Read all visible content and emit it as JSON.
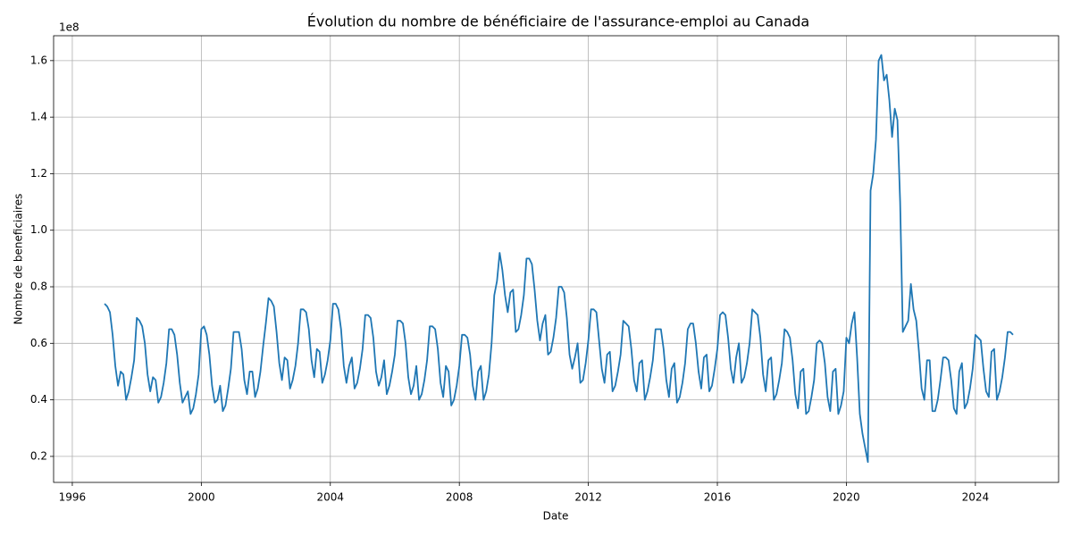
{
  "chart_data": {
    "type": "line",
    "title": "Évolution du nombre de bénéficiaire de l'assurance-emploi au Canada",
    "x_label": "Date",
    "y_label": "Nombre de beneficiaires",
    "y_offset_text": "1e8",
    "grid": true,
    "xlim": [
      1995.42,
      2026.58
    ],
    "ylim": [
      0.108,
      1.688
    ],
    "xticks": [
      1996,
      2000,
      2004,
      2008,
      2012,
      2016,
      2020,
      2024
    ],
    "yticks": [
      0.2,
      0.4,
      0.6,
      0.8,
      {
        "value": 1,
        "label": "1.0"
      },
      1.2,
      1.4,
      1.6
    ],
    "x": [
      1997,
      1997.083,
      1997.167,
      1997.25,
      1997.333,
      1997.417,
      1997.5,
      1997.583,
      1997.667,
      1997.75,
      1997.833,
      1997.917,
      1998,
      1998.083,
      1998.167,
      1998.25,
      1998.333,
      1998.417,
      1998.5,
      1998.583,
      1998.667,
      1998.75,
      1998.833,
      1998.917,
      1999,
      1999.083,
      1999.167,
      1999.25,
      1999.333,
      1999.417,
      1999.5,
      1999.583,
      1999.667,
      1999.75,
      1999.833,
      1999.917,
      2000,
      2000.083,
      2000.167,
      2000.25,
      2000.333,
      2000.417,
      2000.5,
      2000.583,
      2000.667,
      2000.75,
      2000.833,
      2000.917,
      2001,
      2001.083,
      2001.167,
      2001.25,
      2001.333,
      2001.417,
      2001.5,
      2001.583,
      2001.667,
      2001.75,
      2001.833,
      2001.917,
      2002,
      2002.083,
      2002.167,
      2002.25,
      2002.333,
      2002.417,
      2002.5,
      2002.583,
      2002.667,
      2002.75,
      2002.833,
      2002.917,
      2003,
      2003.083,
      2003.167,
      2003.25,
      2003.333,
      2003.417,
      2003.5,
      2003.583,
      2003.667,
      2003.75,
      2003.833,
      2003.917,
      2004,
      2004.083,
      2004.167,
      2004.25,
      2004.333,
      2004.417,
      2004.5,
      2004.583,
      2004.667,
      2004.75,
      2004.833,
      2004.917,
      2005,
      2005.083,
      2005.167,
      2005.25,
      2005.333,
      2005.417,
      2005.5,
      2005.583,
      2005.667,
      2005.75,
      2005.833,
      2005.917,
      2006,
      2006.083,
      2006.167,
      2006.25,
      2006.333,
      2006.417,
      2006.5,
      2006.583,
      2006.667,
      2006.75,
      2006.833,
      2006.917,
      2007,
      2007.083,
      2007.167,
      2007.25,
      2007.333,
      2007.417,
      2007.5,
      2007.583,
      2007.667,
      2007.75,
      2007.833,
      2007.917,
      2008,
      2008.083,
      2008.167,
      2008.25,
      2008.333,
      2008.417,
      2008.5,
      2008.583,
      2008.667,
      2008.75,
      2008.833,
      2008.917,
      2009,
      2009.083,
      2009.167,
      2009.25,
      2009.333,
      2009.417,
      2009.5,
      2009.583,
      2009.667,
      2009.75,
      2009.833,
      2009.917,
      2010,
      2010.083,
      2010.167,
      2010.25,
      2010.333,
      2010.417,
      2010.5,
      2010.583,
      2010.667,
      2010.75,
      2010.833,
      2010.917,
      2011,
      2011.083,
      2011.167,
      2011.25,
      2011.333,
      2011.417,
      2011.5,
      2011.583,
      2011.667,
      2011.75,
      2011.833,
      2011.917,
      2012,
      2012.083,
      2012.167,
      2012.25,
      2012.333,
      2012.417,
      2012.5,
      2012.583,
      2012.667,
      2012.75,
      2012.833,
      2012.917,
      2013,
      2013.083,
      2013.167,
      2013.25,
      2013.333,
      2013.417,
      2013.5,
      2013.583,
      2013.667,
      2013.75,
      2013.833,
      2013.917,
      2014,
      2014.083,
      2014.167,
      2014.25,
      2014.333,
      2014.417,
      2014.5,
      2014.583,
      2014.667,
      2014.75,
      2014.833,
      2014.917,
      2015,
      2015.083,
      2015.167,
      2015.25,
      2015.333,
      2015.417,
      2015.5,
      2015.583,
      2015.667,
      2015.75,
      2015.833,
      2015.917,
      2016,
      2016.083,
      2016.167,
      2016.25,
      2016.333,
      2016.417,
      2016.5,
      2016.583,
      2016.667,
      2016.75,
      2016.833,
      2016.917,
      2017,
      2017.083,
      2017.167,
      2017.25,
      2017.333,
      2017.417,
      2017.5,
      2017.583,
      2017.667,
      2017.75,
      2017.833,
      2017.917,
      2018,
      2018.083,
      2018.167,
      2018.25,
      2018.333,
      2018.417,
      2018.5,
      2018.583,
      2018.667,
      2018.75,
      2018.833,
      2018.917,
      2019,
      2019.083,
      2019.167,
      2019.25,
      2019.333,
      2019.417,
      2019.5,
      2019.583,
      2019.667,
      2019.75,
      2019.833,
      2019.917,
      2020,
      2020.083,
      2020.167,
      2020.25,
      2020.333,
      2020.417,
      2020.5,
      2020.583,
      2020.667,
      2020.75,
      2020.833,
      2020.917,
      2021,
      2021.083,
      2021.167,
      2021.25,
      2021.333,
      2021.417,
      2021.5,
      2021.583,
      2021.667,
      2021.75,
      2021.833,
      2021.917,
      2022,
      2022.083,
      2022.167,
      2022.25,
      2022.333,
      2022.417,
      2022.5,
      2022.583,
      2022.667,
      2022.75,
      2022.833,
      2022.917,
      2023,
      2023.083,
      2023.167,
      2023.25,
      2023.333,
      2023.417,
      2023.5,
      2023.583,
      2023.667,
      2023.75,
      2023.833,
      2023.917,
      2024,
      2024.083,
      2024.167,
      2024.25,
      2024.333,
      2024.417,
      2024.5,
      2024.583,
      2024.667,
      2024.75,
      2024.833,
      2024.917,
      2025,
      2025.083,
      2025.167
    ],
    "series": [
      {
        "color": "#1f77b4",
        "values": [
          0.74,
          0.73,
          0.71,
          0.63,
          0.52,
          0.45,
          0.5,
          0.49,
          0.4,
          0.43,
          0.48,
          0.54,
          0.69,
          0.68,
          0.66,
          0.6,
          0.49,
          0.43,
          0.48,
          0.47,
          0.39,
          0.41,
          0.46,
          0.53,
          0.65,
          0.65,
          0.63,
          0.56,
          0.46,
          0.39,
          0.41,
          0.43,
          0.35,
          0.37,
          0.42,
          0.49,
          0.65,
          0.66,
          0.63,
          0.56,
          0.45,
          0.39,
          0.4,
          0.45,
          0.36,
          0.38,
          0.44,
          0.51,
          0.64,
          0.64,
          0.64,
          0.58,
          0.47,
          0.42,
          0.5,
          0.5,
          0.41,
          0.44,
          0.5,
          0.59,
          0.67,
          0.76,
          0.75,
          0.73,
          0.64,
          0.53,
          0.47,
          0.55,
          0.54,
          0.44,
          0.47,
          0.52,
          0.6,
          0.72,
          0.72,
          0.71,
          0.65,
          0.54,
          0.48,
          0.58,
          0.57,
          0.46,
          0.49,
          0.54,
          0.61,
          0.74,
          0.74,
          0.72,
          0.65,
          0.52,
          0.46,
          0.52,
          0.55,
          0.44,
          0.46,
          0.51,
          0.58,
          0.7,
          0.7,
          0.69,
          0.62,
          0.5,
          0.45,
          0.48,
          0.54,
          0.42,
          0.45,
          0.5,
          0.56,
          0.68,
          0.68,
          0.67,
          0.6,
          0.48,
          0.42,
          0.45,
          0.52,
          0.4,
          0.42,
          0.47,
          0.54,
          0.66,
          0.66,
          0.65,
          0.58,
          0.46,
          0.41,
          0.52,
          0.5,
          0.38,
          0.4,
          0.45,
          0.52,
          0.63,
          0.63,
          0.62,
          0.56,
          0.45,
          0.4,
          0.5,
          0.52,
          0.4,
          0.43,
          0.49,
          0.6,
          0.77,
          0.82,
          0.92,
          0.86,
          0.77,
          0.71,
          0.78,
          0.79,
          0.64,
          0.65,
          0.7,
          0.77,
          0.9,
          0.9,
          0.88,
          0.79,
          0.68,
          0.61,
          0.67,
          0.7,
          0.56,
          0.57,
          0.62,
          0.69,
          0.8,
          0.8,
          0.78,
          0.69,
          0.56,
          0.51,
          0.55,
          0.6,
          0.46,
          0.47,
          0.53,
          0.61,
          0.72,
          0.72,
          0.71,
          0.61,
          0.51,
          0.46,
          0.56,
          0.57,
          0.43,
          0.45,
          0.5,
          0.56,
          0.68,
          0.67,
          0.66,
          0.58,
          0.47,
          0.43,
          0.53,
          0.54,
          0.4,
          0.43,
          0.48,
          0.54,
          0.65,
          0.65,
          0.65,
          0.58,
          0.47,
          0.41,
          0.51,
          0.53,
          0.39,
          0.41,
          0.46,
          0.53,
          0.65,
          0.67,
          0.67,
          0.6,
          0.5,
          0.44,
          0.55,
          0.56,
          0.43,
          0.45,
          0.51,
          0.58,
          0.7,
          0.71,
          0.7,
          0.62,
          0.51,
          0.46,
          0.55,
          0.6,
          0.46,
          0.48,
          0.53,
          0.6,
          0.72,
          0.71,
          0.7,
          0.62,
          0.49,
          0.43,
          0.54,
          0.55,
          0.4,
          0.42,
          0.47,
          0.53,
          0.65,
          0.64,
          0.62,
          0.54,
          0.42,
          0.37,
          0.5,
          0.51,
          0.35,
          0.36,
          0.41,
          0.47,
          0.6,
          0.61,
          0.6,
          0.53,
          0.41,
          0.36,
          0.5,
          0.51,
          0.35,
          0.38,
          0.43,
          0.62,
          0.6,
          0.67,
          0.71,
          0.55,
          0.35,
          0.28,
          0.23,
          0.18,
          1.14,
          1.2,
          1.32,
          1.6,
          1.62,
          1.53,
          1.55,
          1.46,
          1.33,
          1.43,
          1.39,
          1.1,
          0.64,
          0.66,
          0.68,
          0.81,
          0.72,
          0.68,
          0.57,
          0.44,
          0.4,
          0.54,
          0.54,
          0.36,
          0.36,
          0.4,
          0.47,
          0.55,
          0.55,
          0.54,
          0.47,
          0.37,
          0.35,
          0.5,
          0.53,
          0.37,
          0.39,
          0.44,
          0.51,
          0.63,
          0.62,
          0.61,
          0.51,
          0.43,
          0.41,
          0.57,
          0.58,
          0.4,
          0.43,
          0.48,
          0.55,
          0.64,
          0.64,
          0.63
        ]
      }
    ]
  }
}
